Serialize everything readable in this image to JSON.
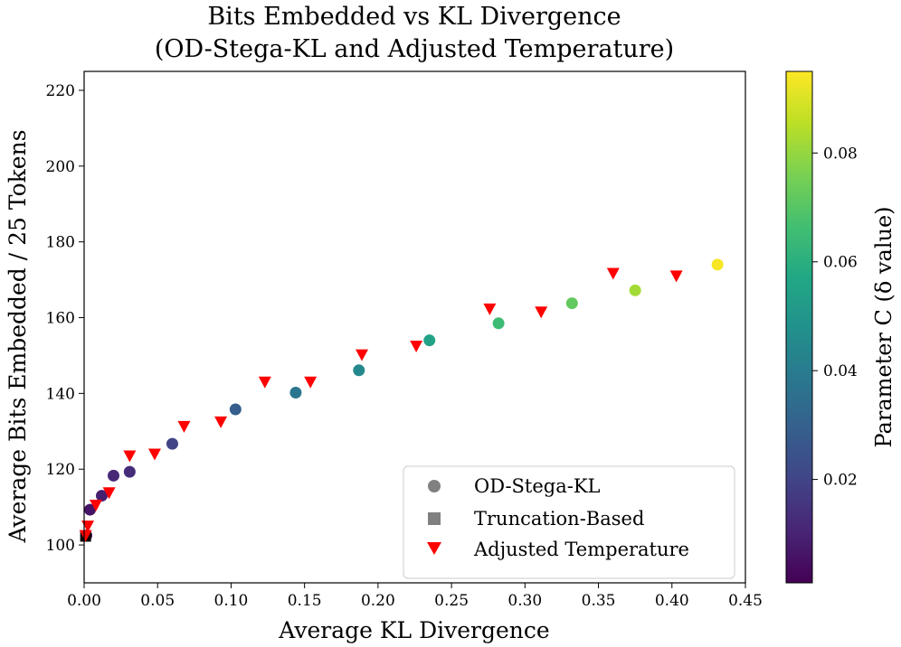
{
  "chart_data": {
    "type": "scatter",
    "title_line1": "Bits Embedded vs KL Divergence",
    "title_line2": "(OD-Stega-KL and Adjusted Temperature)",
    "xlabel": "Average KL Divergence",
    "ylabel": "Average Bits Embedded / 25 Tokens",
    "xlim": [
      0.0,
      0.45
    ],
    "ylim": [
      90,
      225
    ],
    "xticks": [
      0.0,
      0.05,
      0.1,
      0.15,
      0.2,
      0.25,
      0.3,
      0.35,
      0.4,
      0.45
    ],
    "xtick_labels": [
      "0.00",
      "0.05",
      "0.10",
      "0.15",
      "0.20",
      "0.25",
      "0.30",
      "0.35",
      "0.40",
      "0.45"
    ],
    "yticks": [
      100,
      120,
      140,
      160,
      180,
      200,
      220
    ],
    "ytick_labels": [
      "100",
      "120",
      "140",
      "160",
      "180",
      "200",
      "220"
    ],
    "colorbar": {
      "label": "Parameter C (δ value)",
      "range": [
        0.001,
        0.095
      ],
      "ticks": [
        0.02,
        0.04,
        0.06,
        0.08
      ],
      "tick_labels": [
        "0.02",
        "0.04",
        "0.06",
        "0.08"
      ],
      "colormap": "viridis"
    },
    "legend": {
      "placement": "lower-right",
      "entries": [
        "OD-Stega-KL",
        "Truncation-Based",
        "Adjusted Temperature"
      ]
    },
    "series": [
      {
        "name": "OD-Stega-KL",
        "marker": "circle",
        "points": [
          {
            "x": 0.0015,
            "y": 102.5,
            "c": 0.001
          },
          {
            "x": 0.004,
            "y": 109.3,
            "c": 0.006
          },
          {
            "x": 0.012,
            "y": 113.0,
            "c": 0.009
          },
          {
            "x": 0.02,
            "y": 118.3,
            "c": 0.012
          },
          {
            "x": 0.031,
            "y": 119.3,
            "c": 0.013
          },
          {
            "x": 0.06,
            "y": 126.7,
            "c": 0.02
          },
          {
            "x": 0.103,
            "y": 135.8,
            "c": 0.029
          },
          {
            "x": 0.144,
            "y": 140.2,
            "c": 0.038
          },
          {
            "x": 0.187,
            "y": 146.1,
            "c": 0.045
          },
          {
            "x": 0.235,
            "y": 154.0,
            "c": 0.055
          },
          {
            "x": 0.282,
            "y": 158.5,
            "c": 0.065
          },
          {
            "x": 0.332,
            "y": 163.8,
            "c": 0.072
          },
          {
            "x": 0.375,
            "y": 167.2,
            "c": 0.082
          },
          {
            "x": 0.431,
            "y": 174.0,
            "c": 0.094
          }
        ]
      },
      {
        "name": "Truncation-Based",
        "marker": "square",
        "color": "#000000",
        "points": [
          {
            "x": 0.001,
            "y": 102.3
          }
        ]
      },
      {
        "name": "Adjusted Temperature",
        "marker": "triangle-down",
        "color": "#ff0000",
        "points": [
          {
            "x": 0.001,
            "y": 102.5
          },
          {
            "x": 0.0025,
            "y": 105.0
          },
          {
            "x": 0.008,
            "y": 110.5
          },
          {
            "x": 0.017,
            "y": 113.8
          },
          {
            "x": 0.031,
            "y": 123.5
          },
          {
            "x": 0.048,
            "y": 124.0
          },
          {
            "x": 0.068,
            "y": 131.3
          },
          {
            "x": 0.093,
            "y": 132.5
          },
          {
            "x": 0.123,
            "y": 143.0
          },
          {
            "x": 0.154,
            "y": 143.0
          },
          {
            "x": 0.189,
            "y": 150.2
          },
          {
            "x": 0.226,
            "y": 152.5
          },
          {
            "x": 0.276,
            "y": 162.3
          },
          {
            "x": 0.311,
            "y": 161.5
          },
          {
            "x": 0.36,
            "y": 171.7
          },
          {
            "x": 0.403,
            "y": 171.0
          }
        ]
      }
    ]
  }
}
